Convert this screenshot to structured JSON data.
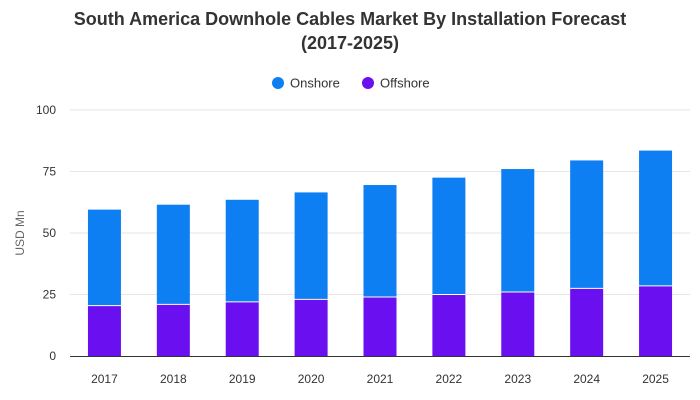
{
  "chart_data": {
    "type": "bar",
    "stacked": true,
    "title_line1": "South America Downhole Cables Market By Installation Forecast",
    "title_line2": "(2017-2025)",
    "xlabel": "",
    "ylabel": "USD Mn",
    "ylim": [
      0,
      100
    ],
    "yticks": [
      0,
      25,
      50,
      75,
      100
    ],
    "grid": true,
    "legend_position": "top-center",
    "categories": [
      "2017",
      "2018",
      "2019",
      "2020",
      "2021",
      "2022",
      "2023",
      "2024",
      "2025"
    ],
    "series": [
      {
        "name": "Offshore",
        "color": "#6a0ff0",
        "values": [
          20.5,
          21,
          22,
          23,
          24,
          25,
          26,
          27.5,
          28.5
        ]
      },
      {
        "name": "Onshore",
        "color": "#0d7ff2",
        "values": [
          39,
          40.5,
          41.5,
          43.5,
          45.5,
          47.5,
          50,
          52,
          55
        ]
      }
    ],
    "legend_order": [
      "Onshore",
      "Offshore"
    ]
  }
}
